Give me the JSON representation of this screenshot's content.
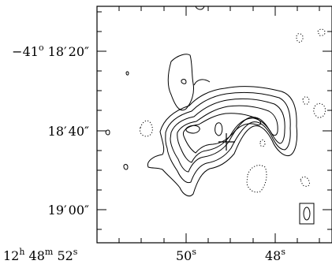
{
  "chart_data": {
    "type": "contour",
    "title": "",
    "xlabel": "",
    "ylabel": "",
    "x_ticks": [
      {
        "h": "12",
        "m": "48",
        "s": "52",
        "ra_sec": 52
      },
      {
        "s": "50",
        "ra_sec": 50
      },
      {
        "s": "48",
        "ra_sec": 48
      }
    ],
    "y_ticks": [
      {
        "deg_sign": "−",
        "deg": "41",
        "min": "18",
        "sec": "20",
        "dec_arcsec": 20
      },
      {
        "min": "18",
        "sec": "40",
        "dec_arcsec": 40
      },
      {
        "min": "19",
        "sec": "00",
        "dec_arcsec": 60
      }
    ],
    "xlim_ra_sec": [
      52.3,
      47.2
    ],
    "ylim_dec_arcsec_south": [
      8,
      72
    ],
    "contours": {
      "positive_levels": 6,
      "negative_levels_dotted": true,
      "peak_marker": "cross"
    },
    "beam_marker": "ellipse-in-box",
    "grid": false
  }
}
